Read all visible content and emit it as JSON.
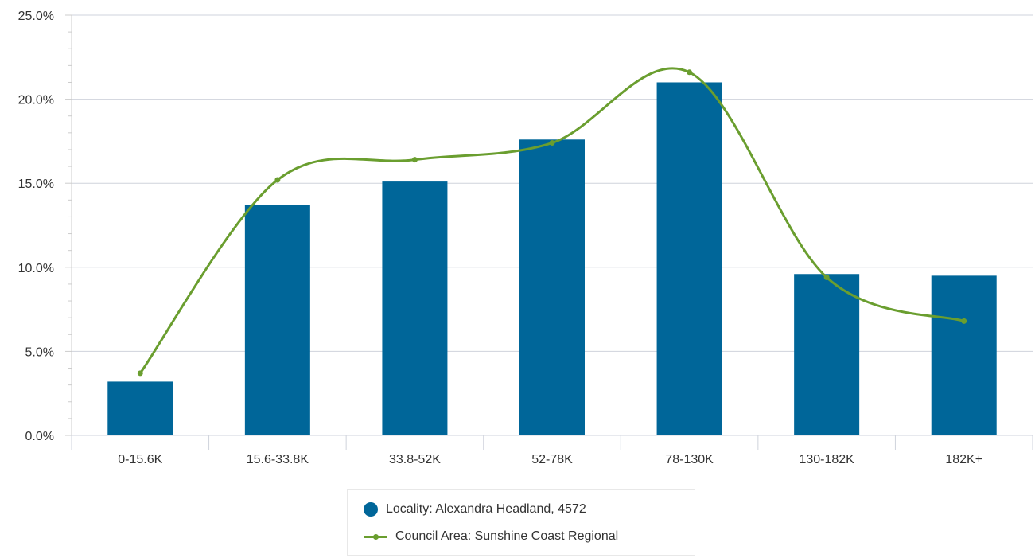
{
  "chart_data": {
    "type": "bar",
    "categories": [
      "0-15.6K",
      "15.6-33.8K",
      "33.8-52K",
      "52-78K",
      "78-130K",
      "130-182K",
      "182K+"
    ],
    "series": [
      {
        "name": "Locality: Alexandra Headland, 4572",
        "type": "bar",
        "color": "#006699",
        "values": [
          3.2,
          13.7,
          15.1,
          17.6,
          21.0,
          9.6,
          9.5
        ]
      },
      {
        "name": "Council Area: Sunshine Coast Regional",
        "type": "line",
        "smooth": true,
        "color": "#6a9e2f",
        "values": [
          3.7,
          15.2,
          16.4,
          17.4,
          21.6,
          9.4,
          6.8
        ]
      }
    ],
    "ylim": [
      0,
      25
    ],
    "y_ticks": [
      "0.0%",
      "5.0%",
      "10.0%",
      "15.0%",
      "20.0%",
      "25.0%"
    ],
    "y_tick_values": [
      0,
      5,
      10,
      15,
      20,
      25
    ],
    "grid": true,
    "legend_position": "bottom-center",
    "xlabel": "",
    "ylabel": "",
    "title": ""
  },
  "legend": {
    "items": [
      {
        "label": "Locality: Alexandra Headland, 4572",
        "color": "#006699",
        "marker": "circle"
      },
      {
        "label": "Council Area: Sunshine Coast Regional",
        "color": "#6a9e2f",
        "marker": "line"
      }
    ]
  }
}
